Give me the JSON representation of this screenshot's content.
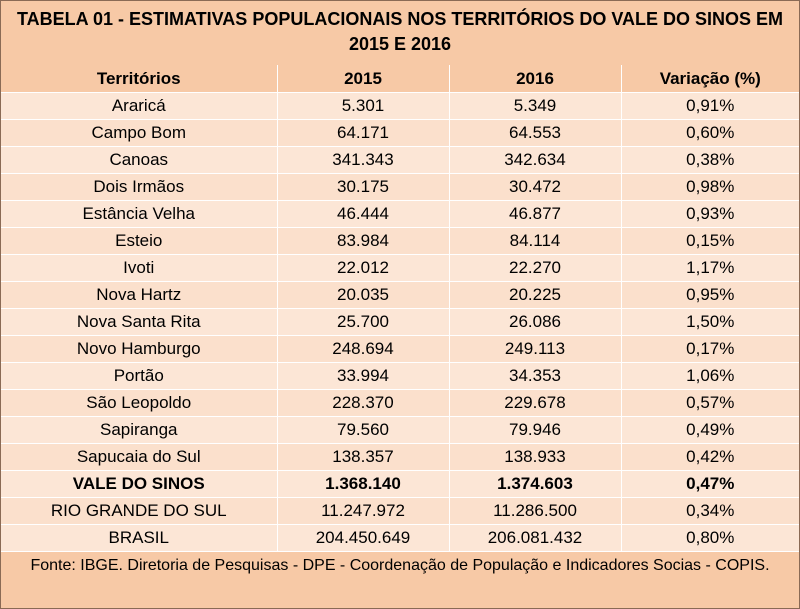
{
  "title": "TABELA 01 - ESTIMATIVAS POPULACIONAIS NOS TERRITÓRIOS DO VALE DO SINOS EM 2015 E 2016",
  "columns": [
    "Territórios",
    "2015",
    "2016",
    "Variação (%)"
  ],
  "rows": [
    [
      "Araricá",
      "5.301",
      "5.349",
      "0,91%"
    ],
    [
      "Campo Bom",
      "64.171",
      "64.553",
      "0,60%"
    ],
    [
      "Canoas",
      "341.343",
      "342.634",
      "0,38%"
    ],
    [
      "Dois Irmãos",
      "30.175",
      "30.472",
      "0,98%"
    ],
    [
      "Estância Velha",
      "46.444",
      "46.877",
      "0,93%"
    ],
    [
      "Esteio",
      "83.984",
      "84.114",
      "0,15%"
    ],
    [
      "Ivoti",
      "22.012",
      "22.270",
      "1,17%"
    ],
    [
      "Nova Hartz",
      "20.035",
      "20.225",
      "0,95%"
    ],
    [
      "Nova Santa Rita",
      "25.700",
      "26.086",
      "1,50%"
    ],
    [
      "Novo Hamburgo",
      "248.694",
      "249.113",
      "0,17%"
    ],
    [
      "Portão",
      "33.994",
      "34.353",
      "1,06%"
    ],
    [
      "São Leopoldo",
      "228.370",
      "229.678",
      "0,57%"
    ],
    [
      "Sapiranga",
      "79.560",
      "79.946",
      "0,49%"
    ],
    [
      "Sapucaia do Sul",
      "138.357",
      "138.933",
      "0,42%"
    ],
    [
      "VALE DO SINOS",
      "1.368.140",
      "1.374.603",
      "0,47%"
    ],
    [
      "RIO GRANDE DO SUL",
      "11.247.972",
      "11.286.500",
      "0,34%"
    ],
    [
      "BRASIL",
      "204.450.649",
      "206.081.432",
      "0,80%"
    ]
  ],
  "bold_row_index": 14,
  "footer": "Fonte: IBGE. Diretoria de Pesquisas - DPE -  Coordenação de População e Indicadores Socias - COPIS.",
  "colors": {
    "header_bg": "#f7c9a6",
    "row_bg": "#fce6d6",
    "row_alt_bg": "#fbe0cc"
  }
}
